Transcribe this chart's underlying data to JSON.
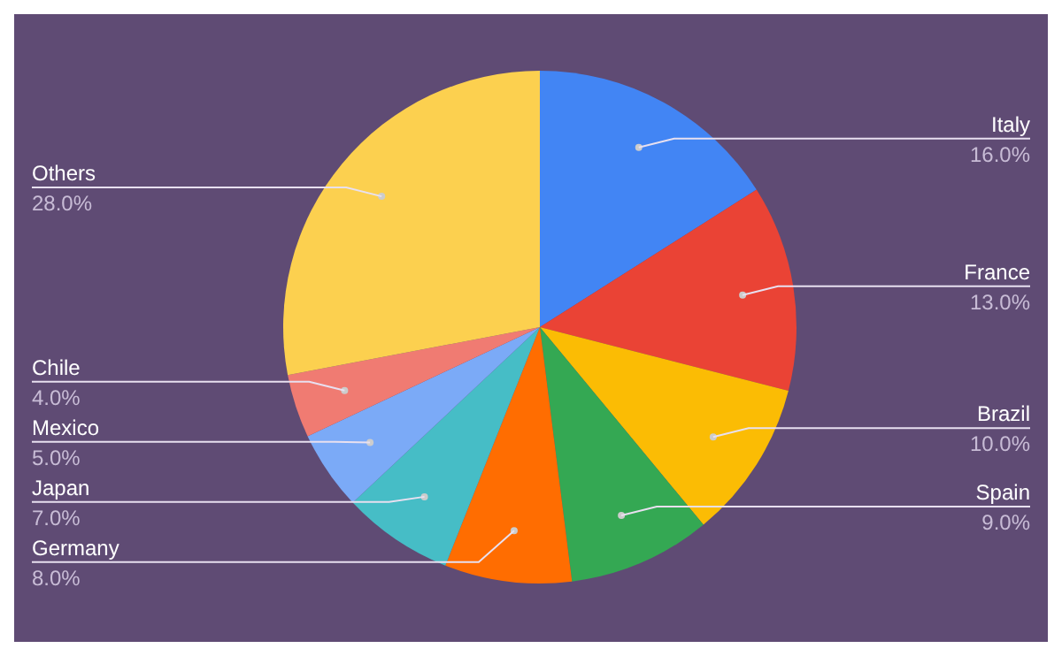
{
  "chart_data": {
    "type": "pie",
    "categories": [
      "Italy",
      "France",
      "Brazil",
      "Spain",
      "Germany",
      "Japan",
      "Mexico",
      "Chile",
      "Others"
    ],
    "values": [
      16,
      13,
      10,
      9,
      8,
      7,
      5,
      4,
      28
    ],
    "value_labels": [
      "16.0%",
      "13.0%",
      "10.0%",
      "9.0%",
      "8.0%",
      "7.0%",
      "5.0%",
      "4.0%",
      "28.0%"
    ],
    "colors": [
      "#4285f4",
      "#ea4335",
      "#fbbc04",
      "#34a853",
      "#ff6d01",
      "#46bdc6",
      "#7baaf7",
      "#f07b72",
      "#fcd04f"
    ],
    "legend": false
  }
}
